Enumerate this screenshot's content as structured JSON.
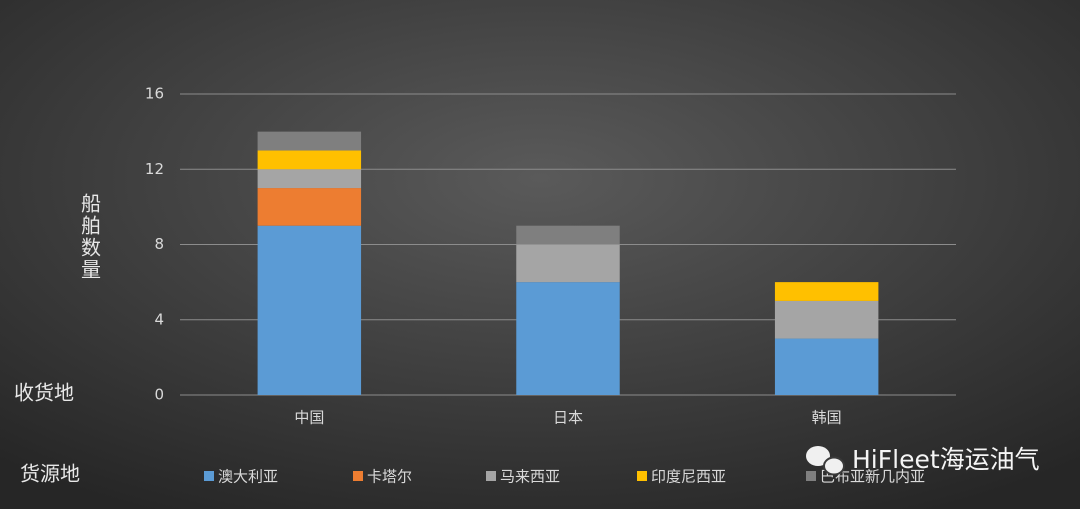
{
  "chart_data": {
    "type": "bar",
    "stacked": true,
    "y_axis_label": "船舶数量",
    "x_axis_label": "收货地",
    "legend_title": "货源地",
    "watermark": "HiFleet海运油气",
    "categories": [
      "中国",
      "日本",
      "韩国"
    ],
    "series": [
      {
        "name": "澳大利亚",
        "color": "#5b9bd5",
        "values": [
          9,
          6,
          3
        ]
      },
      {
        "name": "卡塔尔",
        "color": "#ed7d31",
        "values": [
          2,
          0,
          0
        ]
      },
      {
        "name": "马来西亚",
        "color": "#a5a5a5",
        "values": [
          1,
          2,
          2
        ]
      },
      {
        "name": "印度尼西亚",
        "color": "#ffc000",
        "values": [
          1,
          0,
          1
        ]
      },
      {
        "name": "巴布亚新几内亚",
        "color": "#7f7f7f",
        "values": [
          1,
          1,
          0
        ]
      }
    ],
    "ylim": [
      0,
      16
    ],
    "yticks": [
      0,
      4,
      8,
      12,
      16
    ],
    "grid": true
  }
}
